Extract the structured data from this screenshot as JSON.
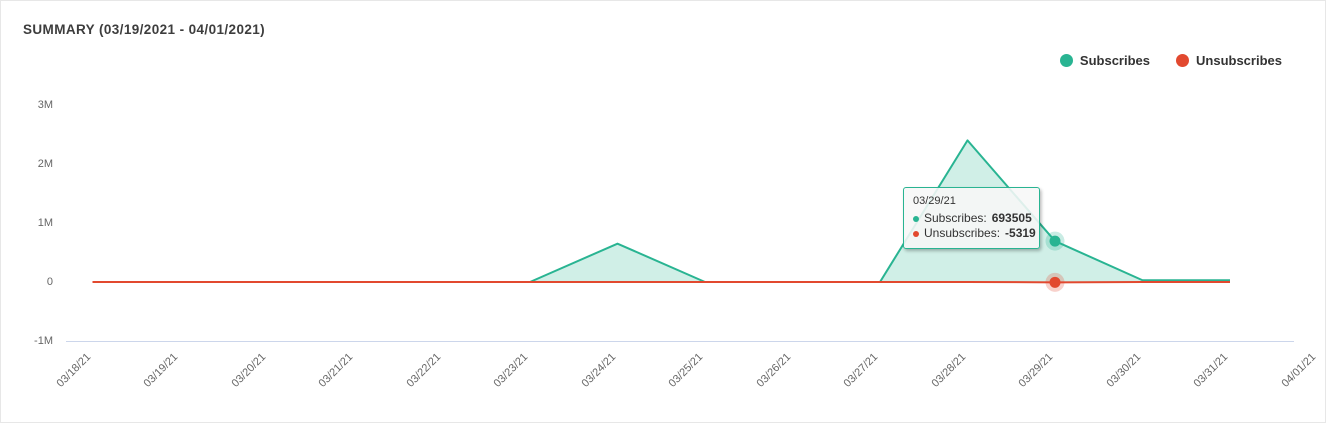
{
  "header": {
    "title": "SUMMARY (03/19/2021 - 04/01/2021)"
  },
  "legend": {
    "items": [
      {
        "label": "Subscribes",
        "color": "#29b492"
      },
      {
        "label": "Unsubscribes",
        "color": "#e2492f"
      }
    ]
  },
  "tooltip": {
    "date": "03/29/21",
    "rows": [
      {
        "label": "Subscribes:",
        "value": "693505",
        "color": "#29b492"
      },
      {
        "label": "Unsubscribes:",
        "value": "-5319",
        "color": "#e2492f"
      }
    ]
  },
  "chart_data": {
    "type": "area",
    "title": "SUMMARY (03/19/2021 - 04/01/2021)",
    "categories": [
      "03/18/21",
      "03/19/21",
      "03/20/21",
      "03/21/21",
      "03/22/21",
      "03/23/21",
      "03/24/21",
      "03/25/21",
      "03/26/21",
      "03/27/21",
      "03/28/21",
      "03/29/21",
      "03/30/21",
      "03/31/21",
      "04/01/21"
    ],
    "series": [
      {
        "name": "Subscribes",
        "color": "#29b492",
        "fill_opacity": 0.22,
        "values": [
          0,
          0,
          0,
          0,
          0,
          0,
          650000,
          0,
          0,
          0,
          2400000,
          693505,
          30000,
          30000,
          null
        ]
      },
      {
        "name": "Unsubscribes",
        "color": "#e2492f",
        "fill_opacity": 0,
        "values": [
          0,
          0,
          0,
          0,
          0,
          0,
          0,
          0,
          0,
          0,
          0,
          -5319,
          0,
          0,
          null
        ]
      }
    ],
    "yticks": {
      "labels": [
        "3M",
        "2M",
        "1M",
        "0",
        "-1M"
      ],
      "values": [
        3000000,
        2000000,
        1000000,
        0,
        -1000000
      ]
    },
    "ylim": [
      -1000000,
      3250000
    ],
    "xlabel": "",
    "ylabel": "",
    "grid": false,
    "legend_position": "top-right",
    "highlight": {
      "category": "03/29/21",
      "index": 11
    },
    "axis_color": "#ccd6eb",
    "label_color": "#666666"
  }
}
